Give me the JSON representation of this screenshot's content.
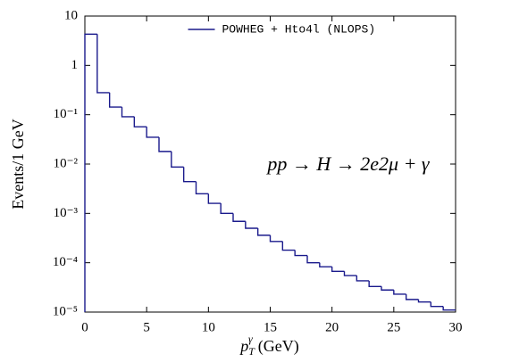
{
  "chart_data": {
    "type": "histogram",
    "xlabel": {
      "base": "p",
      "sub": "T",
      "sup": "γ",
      "unit": "(GeV)"
    },
    "ylabel": "Events/1 GeV",
    "annotation": "pp → H → 2e2μ + γ",
    "bins": [
      0,
      1,
      2,
      3,
      4,
      5,
      6,
      7,
      8,
      9,
      10,
      11,
      12,
      13,
      14,
      15,
      16,
      17,
      18,
      19,
      20,
      21,
      22,
      23,
      24,
      25,
      26,
      27,
      28,
      29,
      30
    ],
    "series": [
      {
        "name": "POWHEG + Hto4l (NLOPS)",
        "color": "#1a1a8c",
        "values": [
          4.3,
          0.28,
          0.143,
          0.091,
          0.057,
          0.035,
          0.018,
          0.0087,
          0.0044,
          0.0025,
          0.0016,
          0.001,
          0.00069,
          0.0005,
          0.00036,
          0.00027,
          0.00018,
          0.00014,
          0.0001,
          8.3e-05,
          6.7e-05,
          5.5e-05,
          4.3e-05,
          3.3e-05,
          2.8e-05,
          2.3e-05,
          1.8e-05,
          1.6e-05,
          1.3e-05,
          1.1e-05
        ]
      }
    ],
    "xlim": [
      0,
      30
    ],
    "xticks": [
      0,
      5,
      10,
      15,
      20,
      25,
      30
    ],
    "ylim": [
      1e-05,
      10
    ],
    "log_y": true,
    "yticks": [
      {
        "value": 10,
        "label": "10"
      },
      {
        "value": 1,
        "label": "1"
      },
      {
        "value": 0.1,
        "label": "10⁻¹"
      },
      {
        "value": 0.01,
        "label": "10⁻²"
      },
      {
        "value": 0.001,
        "label": "10⁻³"
      },
      {
        "value": 0.0001,
        "label": "10⁻⁴"
      },
      {
        "value": 1e-05,
        "label": "10⁻⁵"
      }
    ],
    "legend": "upper center"
  }
}
